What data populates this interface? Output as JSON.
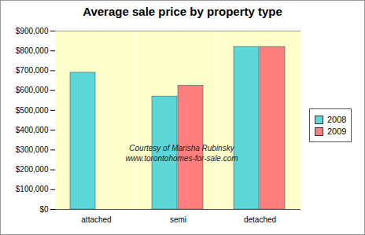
{
  "chart_data": {
    "type": "bar",
    "title": "Average sale price by property type",
    "categories": [
      "attached",
      "semi",
      "detached"
    ],
    "series": [
      {
        "name": "2008",
        "color": "#5cd6d6",
        "values": [
          690000,
          570000,
          820000
        ]
      },
      {
        "name": "2009",
        "color": "#ff7f7f",
        "values": [
          0,
          625000,
          820000
        ]
      }
    ],
    "ylim": [
      0,
      900000
    ],
    "yticks": [
      {
        "value": 0,
        "label": "$0"
      },
      {
        "value": 100000,
        "label": "$100,000"
      },
      {
        "value": 200000,
        "label": "$200,000"
      },
      {
        "value": 300000,
        "label": "$300,000"
      },
      {
        "value": 400000,
        "label": "$400,000"
      },
      {
        "value": 500000,
        "label": "$500,000"
      },
      {
        "value": 600000,
        "label": "$600,000"
      },
      {
        "value": 700000,
        "label": "$700,000"
      },
      {
        "value": 800000,
        "label": "$800,000"
      },
      {
        "value": 900000,
        "label": "$900,000"
      }
    ],
    "annotations": [
      "Courtesy of Marisha Rubinsky",
      "www.torontohomes-for-sale.com"
    ],
    "grid": false,
    "legend": "right"
  }
}
